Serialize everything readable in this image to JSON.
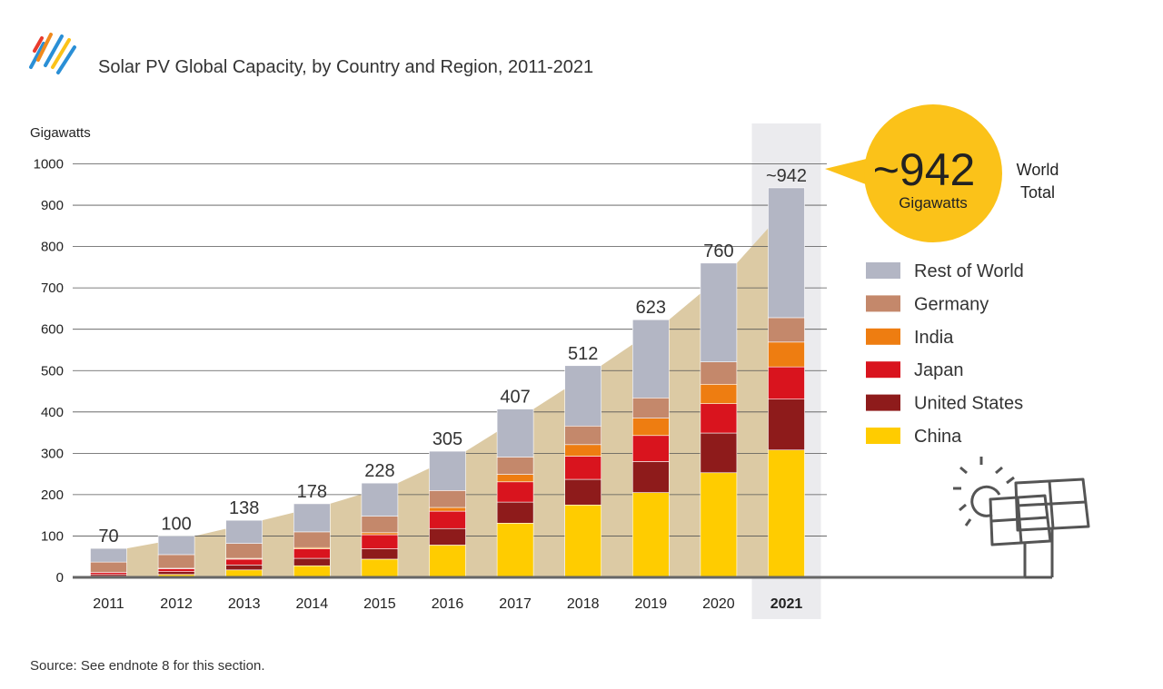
{
  "chart_data": {
    "type": "bar",
    "stacked": true,
    "title": "Solar PV Global Capacity, by Country and Region, 2011-2021",
    "ylabel": "Gigawatts",
    "ylim": [
      0,
      1000
    ],
    "yticks": [
      0,
      100,
      200,
      300,
      400,
      500,
      600,
      700,
      800,
      900,
      1000
    ],
    "grid": true,
    "legend_position": "right",
    "categories": [
      "2011",
      "2012",
      "2013",
      "2014",
      "2015",
      "2016",
      "2017",
      "2018",
      "2019",
      "2020",
      "2021"
    ],
    "highlight_category": "2021",
    "totals": [
      70,
      100,
      138,
      178,
      228,
      305,
      407,
      512,
      623,
      760,
      942
    ],
    "total_labels": [
      "70",
      "100",
      "138",
      "178",
      "228",
      "305",
      "407",
      "512",
      "623",
      "760",
      "~942"
    ],
    "series": [
      {
        "name": "China",
        "color": "#ffcc00",
        "values": [
          3,
          7,
          18,
          28,
          44,
          78,
          131,
          175,
          205,
          253,
          308
        ]
      },
      {
        "name": "United States",
        "color": "#8e1b1b",
        "values": [
          4,
          7,
          12,
          18,
          25,
          40,
          51,
          62,
          75,
          96,
          123
        ]
      },
      {
        "name": "Japan",
        "color": "#d9141e",
        "values": [
          5,
          7,
          14,
          23,
          34,
          42,
          49,
          56,
          63,
          71,
          78
        ]
      },
      {
        "name": "India",
        "color": "#ee7d11",
        "values": [
          0,
          1,
          2,
          3,
          5,
          9,
          18,
          28,
          42,
          47,
          60
        ]
      },
      {
        "name": "Germany",
        "color": "#c4886b",
        "values": [
          25,
          33,
          36,
          38,
          40,
          41,
          42,
          45,
          49,
          54,
          59
        ]
      },
      {
        "name": "Rest of World",
        "color": "#b3b6c4",
        "values": [
          33,
          45,
          56,
          68,
          80,
          95,
          116,
          146,
          189,
          239,
          314
        ]
      }
    ]
  },
  "callout": {
    "value": "~942",
    "unit": "Gigawatts",
    "side_label_line1": "World",
    "side_label_line2": "Total"
  },
  "source": "Source: See endnote 8 for this section.",
  "colors": {
    "trend_area": "#dccaa4",
    "highlight_bg": "#ebebee",
    "callout_circle": "#fbc219",
    "axis_line": "#666666"
  }
}
